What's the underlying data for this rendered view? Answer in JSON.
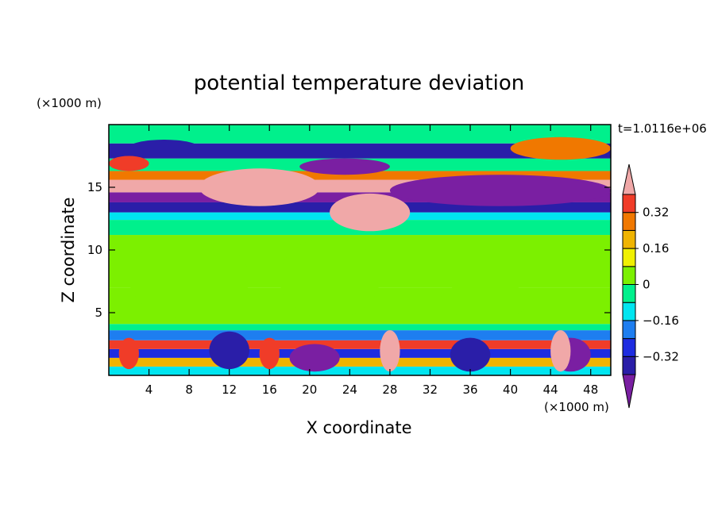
{
  "chart_data": {
    "type": "heatmap",
    "title": "potential temperature deviation",
    "xlabel": "X coordinate",
    "ylabel": "Z coordinate",
    "x_unit_label": "(×1000 m)",
    "y_unit_label": "(×1000 m)",
    "time_label": "t=1.0116e+06",
    "xlim": [
      0,
      50
    ],
    "ylim": [
      0,
      20
    ],
    "x_ticks": [
      {
        "value": 4,
        "label": "4"
      },
      {
        "value": 8,
        "label": "8"
      },
      {
        "value": 12,
        "label": "12"
      },
      {
        "value": 16,
        "label": "16"
      },
      {
        "value": 20,
        "label": "20"
      },
      {
        "value": 24,
        "label": "24"
      },
      {
        "value": 28,
        "label": "28"
      },
      {
        "value": 32,
        "label": "32"
      },
      {
        "value": 36,
        "label": "36"
      },
      {
        "value": 40,
        "label": "40"
      },
      {
        "value": 44,
        "label": "44"
      },
      {
        "value": 48,
        "label": "48"
      }
    ],
    "y_ticks": [
      {
        "value": 5,
        "label": "5"
      },
      {
        "value": 10,
        "label": "10"
      },
      {
        "value": 15,
        "label": "15"
      }
    ],
    "colorbar": {
      "levels": [
        -0.48,
        -0.4,
        -0.32,
        -0.24,
        -0.16,
        -0.08,
        0,
        0.08,
        0.16,
        0.24,
        0.32,
        0.4,
        0.48
      ],
      "labeled_levels": [
        {
          "value": 0.32,
          "label": "0.32"
        },
        {
          "value": 0.16,
          "label": "0.16"
        },
        {
          "value": 0,
          "label": "0"
        },
        {
          "value": -0.16,
          "label": "−0.16"
        },
        {
          "value": -0.32,
          "label": "−0.32"
        }
      ],
      "colors": [
        "#7a1fa2",
        "#2a1ea8",
        "#1e2ce0",
        "#1e7ef0",
        "#00e5f0",
        "#00f08c",
        "#7cf000",
        "#f0f000",
        "#f0b400",
        "#f07800",
        "#f03c28",
        "#f0a8a8"
      ]
    },
    "bands": [
      {
        "z": [
          0.0,
          0.7
        ],
        "level": 4
      },
      {
        "z": [
          0.7,
          1.4
        ],
        "level": 8
      },
      {
        "z": [
          1.4,
          2.1
        ],
        "level": 2
      },
      {
        "z": [
          2.1,
          2.8
        ],
        "level": 10
      },
      {
        "z": [
          2.8,
          3.6
        ],
        "level": 3
      },
      {
        "z": [
          3.6,
          4.1
        ],
        "level": 5
      },
      {
        "z": [
          4.1,
          7.0
        ],
        "level": 6
      },
      {
        "z": [
          7.0,
          11.2
        ],
        "level": 6
      },
      {
        "z": [
          11.2,
          12.4
        ],
        "level": 5
      },
      {
        "z": [
          12.4,
          13.0
        ],
        "level": 4
      },
      {
        "z": [
          13.0,
          13.8
        ],
        "level": 1
      },
      {
        "z": [
          13.8,
          14.6
        ],
        "level": 0
      },
      {
        "z": [
          14.6,
          15.6
        ],
        "level": 11
      },
      {
        "z": [
          15.6,
          16.3
        ],
        "level": 9
      },
      {
        "z": [
          16.3,
          17.3
        ],
        "level": 5
      },
      {
        "z": [
          17.3,
          18.5
        ],
        "level": 1
      },
      {
        "z": [
          18.5,
          20.0
        ],
        "level": 5
      }
    ],
    "features": [
      {
        "x": [
          2,
          14
        ],
        "z": [
          4.5,
          11
        ],
        "level": 6
      },
      {
        "x": [
          17,
          27
        ],
        "z": [
          4.5,
          11
        ],
        "level": 6
      },
      {
        "x": [
          33,
          42
        ],
        "z": [
          4.5,
          7.5
        ],
        "level": 6
      },
      {
        "x": [
          9,
          21
        ],
        "z": [
          13.5,
          16.5
        ],
        "level": 11
      },
      {
        "x": [
          22,
          30
        ],
        "z": [
          11.5,
          14.5
        ],
        "level": 11
      },
      {
        "x": [
          0,
          4
        ],
        "z": [
          16.3,
          17.5
        ],
        "level": 10
      },
      {
        "x": [
          28,
          50
        ],
        "z": [
          13.5,
          16.0
        ],
        "level": 0
      },
      {
        "x": [
          19,
          28
        ],
        "z": [
          16.0,
          17.3
        ],
        "level": 0
      },
      {
        "x": [
          2,
          9
        ],
        "z": [
          17.5,
          18.8
        ],
        "level": 1
      },
      {
        "x": [
          40,
          50
        ],
        "z": [
          17.2,
          19.0
        ],
        "level": 9
      },
      {
        "x": [
          10,
          14
        ],
        "z": [
          0.5,
          3.5
        ],
        "level": 1
      },
      {
        "x": [
          18,
          23
        ],
        "z": [
          0.3,
          2.5
        ],
        "level": 0
      },
      {
        "x": [
          34,
          38
        ],
        "z": [
          0.3,
          3.0
        ],
        "level": 1
      },
      {
        "x": [
          44,
          48
        ],
        "z": [
          0.3,
          3.0
        ],
        "level": 0
      },
      {
        "x": [
          27,
          29
        ],
        "z": [
          0.3,
          3.6
        ],
        "level": 11
      },
      {
        "x": [
          44,
          46
        ],
        "z": [
          0.3,
          3.6
        ],
        "level": 11
      },
      {
        "x": [
          1,
          3
        ],
        "z": [
          0.5,
          3.0
        ],
        "level": 10
      },
      {
        "x": [
          15,
          17
        ],
        "z": [
          0.5,
          3.0
        ],
        "level": 10
      }
    ]
  }
}
